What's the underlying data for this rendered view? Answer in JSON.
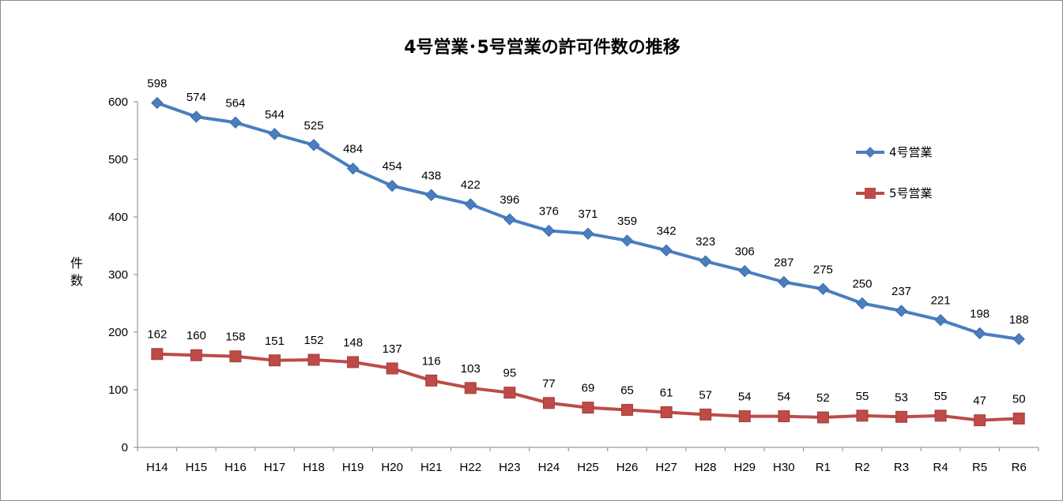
{
  "chart_data": {
    "type": "line",
    "title": "4号営業･5号営業の許可件数の推移",
    "xlabel": "",
    "ylabel": "件数",
    "ylim": [
      0,
      600
    ],
    "yticks": [
      0,
      100,
      200,
      300,
      400,
      500,
      600
    ],
    "grid": false,
    "legend_position": "right",
    "categories": [
      "H14",
      "H15",
      "H16",
      "H17",
      "H18",
      "H19",
      "H20",
      "H21",
      "H22",
      "H23",
      "H24",
      "H25",
      "H26",
      "H27",
      "H28",
      "H29",
      "H30",
      "R1",
      "R2",
      "R3",
      "R4",
      "R5",
      "R6"
    ],
    "series": [
      {
        "name": "4号営業",
        "color": "#4a7ebf",
        "marker": "diamond",
        "values": [
          598,
          574,
          564,
          544,
          525,
          484,
          454,
          438,
          422,
          396,
          376,
          371,
          359,
          342,
          323,
          306,
          287,
          275,
          250,
          237,
          221,
          198,
          188
        ]
      },
      {
        "name": "5号営業",
        "color": "#be4b48",
        "marker": "square",
        "values": [
          162,
          160,
          158,
          151,
          152,
          148,
          137,
          116,
          103,
          95,
          77,
          69,
          65,
          61,
          57,
          54,
          54,
          52,
          55,
          53,
          55,
          47,
          50
        ]
      }
    ]
  }
}
